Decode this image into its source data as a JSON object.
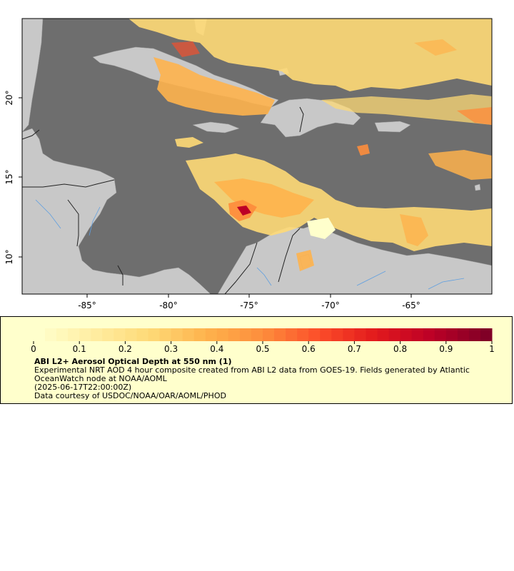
{
  "map": {
    "lat_ticks": [
      "10°",
      "15°",
      "20°"
    ],
    "lon_ticks": [
      "-85°",
      "-80°",
      "-75°",
      "-70°",
      "-65°"
    ],
    "colors": {
      "ocean": "#6e6e6e",
      "land": "#c8c8c8",
      "border": "#222222",
      "river": "#5f9fe0"
    }
  },
  "legend": {
    "ticks": [
      "0",
      "0.1",
      "0.2",
      "0.3",
      "0.4",
      "0.5",
      "0.6",
      "0.7",
      "0.8",
      "0.9",
      "1"
    ],
    "colors": [
      "#ffffcc",
      "#ffeda0",
      "#fed976",
      "#feb24c",
      "#fd8d3c",
      "#fc4e2a",
      "#e31a1c",
      "#bd0026",
      "#800026"
    ],
    "title": "ABI L2+ Aerosol Optical Depth at 550 nm (1)",
    "lines": [
      "Experimental NRT AOD 4 hour composite created from ABI L2 data from GOES-19. Fields generated by Atlantic",
      "OceanWatch node at NOAA/AOML",
      "(2025-06-17T22:00:00Z)",
      "Data courtesy of USDOC/NOAA/OAR/AOML/PHOD"
    ]
  }
}
